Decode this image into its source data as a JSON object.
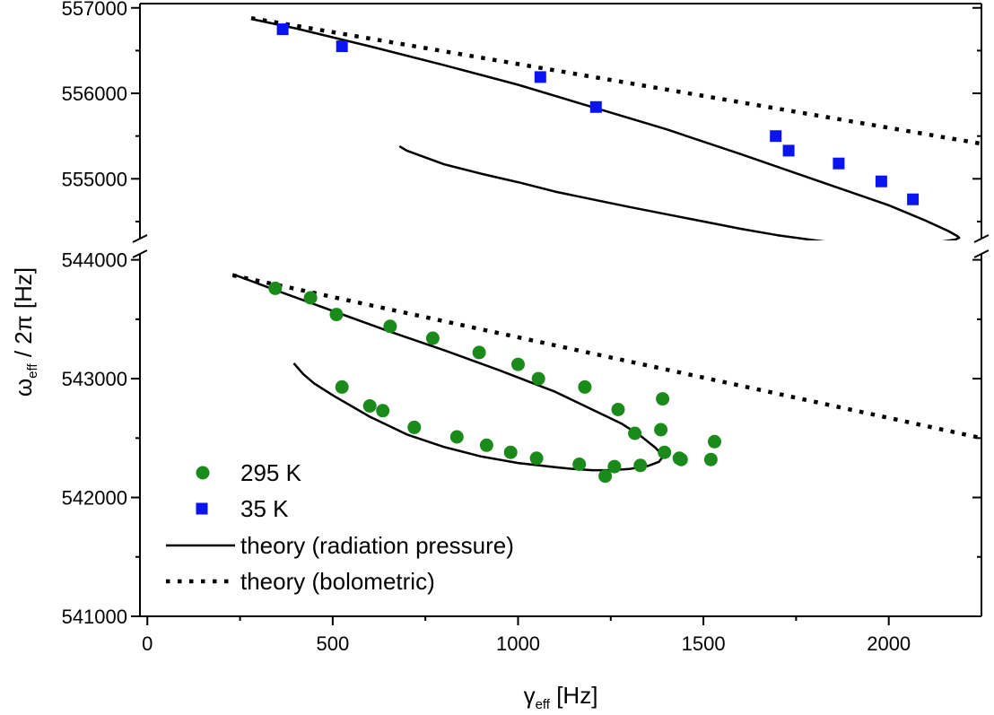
{
  "chart_data": {
    "type": "scatter",
    "title": "",
    "xlabel": {
      "base": "γ",
      "sub": "eff",
      "unit": "[Hz]"
    },
    "ylabel": {
      "base": "ω",
      "sub": "eff",
      "rest": " / 2π [Hz]"
    },
    "xlim": [
      -20,
      2250
    ],
    "x_ticks": [
      0,
      500,
      1000,
      1500,
      2000
    ],
    "x_tick_labels": [
      "0",
      "500",
      "1000",
      "1500",
      "2000"
    ],
    "upper_panel": {
      "ylim": [
        554300,
        557050
      ],
      "y_ticks": [
        555000,
        556000,
        557000
      ],
      "y_tick_labels": [
        "555000",
        "556000",
        "557000"
      ]
    },
    "lower_panel": {
      "ylim": [
        541000,
        544050
      ],
      "y_ticks": [
        541000,
        542000,
        543000,
        544000
      ],
      "y_tick_labels": [
        "541000",
        "542000",
        "543000",
        "544000"
      ]
    },
    "axis_break": "y between 544050 and 554300",
    "legend_position": "bottom-left",
    "series": [
      {
        "name": "295 K",
        "marker": "circle",
        "color": "#1a8a1a",
        "panel": "lower",
        "x": [
          345,
          440,
          510,
          525,
          600,
          635,
          655,
          720,
          770,
          835,
          895,
          915,
          980,
          1000,
          1050,
          1055,
          1165,
          1180,
          1235,
          1260,
          1270,
          1315,
          1330,
          1385,
          1390,
          1395,
          1435,
          1440,
          1520,
          1530
        ],
        "y": [
          543760,
          543680,
          543540,
          542930,
          542770,
          542730,
          543440,
          542590,
          543340,
          542510,
          543220,
          542440,
          542380,
          543120,
          542330,
          543000,
          542280,
          542930,
          542180,
          542260,
          542740,
          542540,
          542270,
          542570,
          542830,
          542380,
          542330,
          542320,
          542320,
          542470
        ]
      },
      {
        "name": "35 K",
        "marker": "square",
        "color": "#0a14f0",
        "panel": "upper",
        "x": [
          365,
          525,
          1060,
          1210,
          1695,
          1730,
          1865,
          1980,
          2065
        ],
        "y": [
          556750,
          556550,
          556190,
          555840,
          555500,
          555330,
          555180,
          554970,
          554760
        ]
      },
      {
        "name": "theory (radiation pressure)",
        "style": "solid",
        "color": "#000000",
        "segments": [
          {
            "panel": "upper",
            "x": [
              280,
              400,
              600,
              800,
              1000,
              1200,
              1400,
              1600,
              1800,
              2000,
              2100,
              2160,
              2185,
              2190,
              2180,
              2150,
              2100,
              2050,
              2000,
              1950,
              1900,
              1800,
              1700,
              1600,
              1500,
              1400,
              1300,
              1200,
              1100,
              1000,
              900,
              800,
              700,
              680
            ],
            "y": [
              556870,
              556760,
              556550,
              556330,
              556100,
              555840,
              555580,
              555290,
              554990,
              554690,
              554510,
              554390,
              554330,
              554310,
              554290,
              554270,
              554235,
              554215,
              554205,
              554215,
              554230,
              554280,
              554340,
              554415,
              554500,
              554585,
              554670,
              554760,
              554850,
              554960,
              555060,
              555170,
              555330,
              555380
            ]
          },
          {
            "panel": "lower",
            "x": [
              230,
              350,
              500,
              650,
              800,
              950,
              1100,
              1200,
              1280,
              1330,
              1370,
              1385,
              1390,
              1380,
              1350,
              1300,
              1250,
              1200,
              1150,
              1100,
              1000,
              900,
              800,
              700,
              600,
              500,
              450,
              420,
              395
            ],
            "y": [
              543880,
              543740,
              543570,
              543400,
              543240,
              543070,
              542890,
              542740,
              542620,
              542520,
              542420,
              542370,
              542340,
              542300,
              542265,
              542240,
              542230,
              542230,
              542240,
              542255,
              542290,
              542345,
              542425,
              542530,
              542680,
              542860,
              542960,
              543040,
              543130
            ]
          }
        ]
      },
      {
        "name": "theory (bolometric)",
        "style": "dotted",
        "color": "#000000",
        "segments": [
          {
            "panel": "upper",
            "x": [
              280,
              2250
            ],
            "y": [
              556880,
              555410
            ]
          },
          {
            "panel": "lower",
            "x": [
              230,
              2250
            ],
            "y": [
              543870,
              542500
            ]
          }
        ]
      }
    ]
  }
}
